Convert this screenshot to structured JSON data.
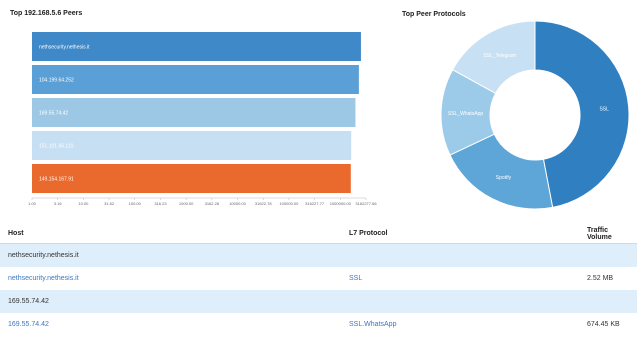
{
  "bar_chart": {
    "title": "Top 192.168.5.6 Peers"
  },
  "pie_chart": {
    "title": "Top Peer Protocols"
  },
  "chart_data": [
    {
      "type": "bar",
      "orientation": "horizontal",
      "title": "Top 192.168.5.6 Peers",
      "categories": [
        "nethsecurity.nethesis.it",
        "104.199.64.252",
        "169.55.74.42",
        "151.101.66.110",
        "149.154.167.91"
      ],
      "values": [
        2520000,
        2300000,
        1970000,
        1630000,
        1600000
      ],
      "colors": [
        "#3f89c9",
        "#5aa0d6",
        "#9cc8e6",
        "#c7dff2",
        "#ea6a2d"
      ],
      "xscale": "log",
      "xticks": [
        "1.00",
        "3.16",
        "10.00",
        "31.62",
        "100.00",
        "316.23",
        "1000.00",
        "3162.28",
        "10000.00",
        "31622.78",
        "100000.00",
        "316227.77",
        "1000000.00",
        "3162277.66"
      ],
      "xlim": [
        1,
        3162277.66
      ],
      "grid": false
    },
    {
      "type": "pie",
      "donut": true,
      "title": "Top Peer Protocols",
      "labels": [
        "SSL",
        "Spotify",
        "SSL_WhatsApp",
        "SSL_Telegram"
      ],
      "values": [
        47,
        21,
        15,
        17
      ],
      "colors": [
        "#2f7fc1",
        "#5ea5d8",
        "#9ccbe9",
        "#c8e0f3"
      ]
    }
  ],
  "table": {
    "headers": {
      "host": "Host",
      "protocol": "L7 Protocol",
      "traffic": "Traffic Volume"
    },
    "rows": [
      {
        "kind": "group",
        "host": "nethsecurity.nethesis.it"
      },
      {
        "kind": "data",
        "host": "nethsecurity.nethesis.it",
        "protocol": "SSL",
        "traffic": "2.52 MB"
      },
      {
        "kind": "group",
        "host": "169.55.74.42"
      },
      {
        "kind": "data",
        "host": "169.55.74.42",
        "protocol": "SSL.WhatsApp",
        "traffic": "674.45 KB"
      }
    ]
  }
}
